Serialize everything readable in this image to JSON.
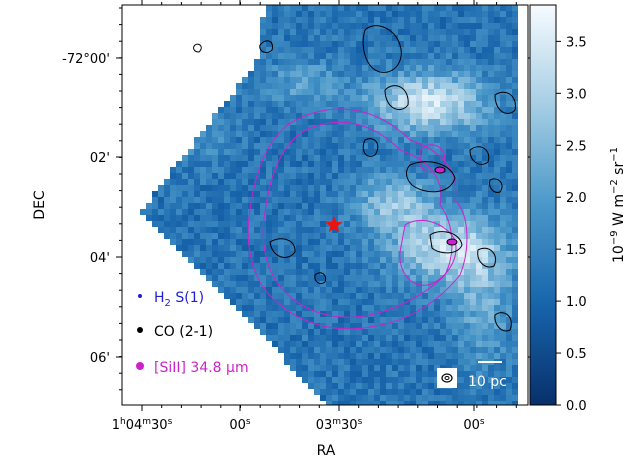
{
  "chart_data": {
    "type": "heatmap",
    "title": "",
    "xlabel": "RA",
    "ylabel": "DEC",
    "x_ticks": [
      {
        "h": "1",
        "m": "04",
        "s": "30",
        "full": true
      },
      {
        "s": "00",
        "full": false
      },
      {
        "m": "03",
        "s": "30",
        "full": false,
        "prefix": "03"
      },
      {
        "s": "00",
        "full": false
      }
    ],
    "y_ticks": [
      "-72°00'",
      "02'",
      "04'",
      "06'"
    ],
    "colorbar": {
      "label_base": "10",
      "label_exp": "−9",
      "label_rest": " W m",
      "label_exp2": "−2",
      "label_rest2": " sr",
      "label_exp3": "−1",
      "ticks": [
        "0.0",
        "0.5",
        "1.0",
        "1.5",
        "2.0",
        "2.5",
        "3.0",
        "3.5"
      ],
      "range": [
        0.0,
        3.85
      ],
      "colormap": "Blues_r"
    },
    "legend": [
      {
        "name": "H₂ S(1)",
        "color": "#1f1fd6",
        "marker_size": 2
      },
      {
        "name": "CO (2-1)",
        "color": "#000000",
        "marker_size": 3
      },
      {
        "name": "[SiII] 34.8 μm",
        "color": "#cc22cc",
        "marker_size": 4
      }
    ],
    "star_marker": {
      "color": "#ee1111"
    },
    "scalebar_label": "10 pc",
    "contour_colors": {
      "co": "#000000",
      "siii": "#cc22cc"
    }
  }
}
